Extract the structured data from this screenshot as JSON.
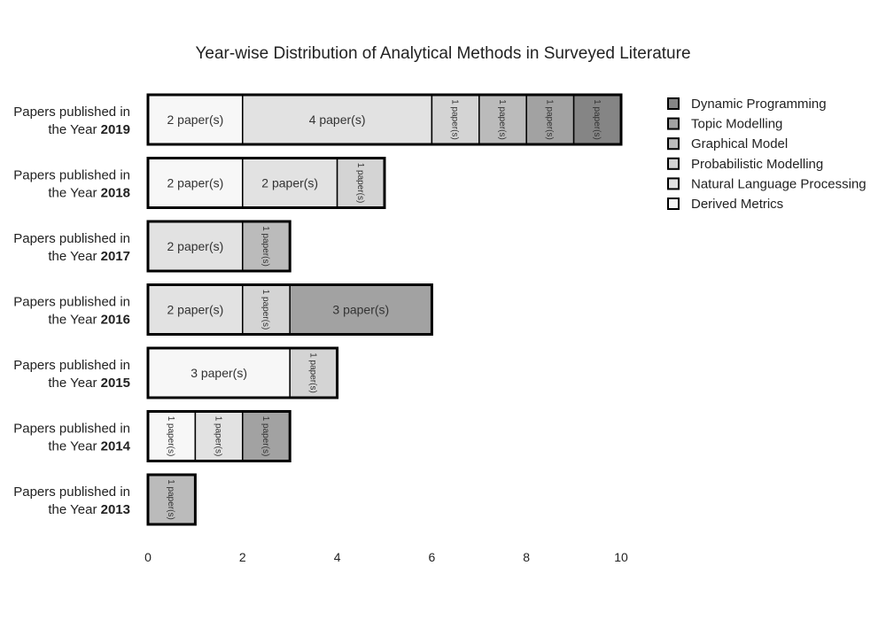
{
  "chart_data": {
    "type": "bar",
    "orientation": "horizontal",
    "stacked": true,
    "title": "Year-wise Distribution of Analytical Methods in Surveyed Literature",
    "xlabel": "",
    "ylabel": "",
    "xlim": [
      0,
      10
    ],
    "xticks": [
      "0",
      "2",
      "4",
      "6",
      "8",
      "10"
    ],
    "grid": false,
    "legend_position": "top-right",
    "categories": [
      {
        "prefix": "Papers published in",
        "line2": "the Year ",
        "year": "2013"
      },
      {
        "prefix": "Papers published in",
        "line2": "the Year ",
        "year": "2014"
      },
      {
        "prefix": "Papers published in",
        "line2": "the Year ",
        "year": "2015"
      },
      {
        "prefix": "Papers published in",
        "line2": "the Year ",
        "year": "2016"
      },
      {
        "prefix": "Papers published in",
        "line2": "the Year ",
        "year": "2017"
      },
      {
        "prefix": "Papers published in",
        "line2": "the Year ",
        "year": "2018"
      },
      {
        "prefix": "Papers published in",
        "line2": "the Year ",
        "year": "2019"
      }
    ],
    "segment_label_suffix": " paper(s)",
    "series": [
      {
        "name": "Derived Metrics",
        "color": "#f7f7f7",
        "values": [
          0,
          1,
          3,
          0,
          0,
          2,
          2
        ]
      },
      {
        "name": "Natural Language Processing",
        "color": "#e2e2e2",
        "values": [
          0,
          1,
          0,
          2,
          2,
          2,
          4
        ]
      },
      {
        "name": "Probabilistic Modelling",
        "color": "#d4d4d4",
        "values": [
          0,
          0,
          1,
          1,
          0,
          1,
          1
        ]
      },
      {
        "name": "Graphical Model",
        "color": "#bbbbbb",
        "values": [
          1,
          0,
          0,
          0,
          1,
          0,
          1
        ]
      },
      {
        "name": "Topic Modelling",
        "color": "#a2a2a2",
        "values": [
          0,
          1,
          0,
          3,
          0,
          0,
          1
        ]
      },
      {
        "name": "Dynamic Programming",
        "color": "#858585",
        "values": [
          0,
          0,
          0,
          0,
          0,
          0,
          1
        ]
      }
    ],
    "legend_order": [
      "Dynamic Programming",
      "Topic Modelling",
      "Graphical Model",
      "Probabilistic Modelling",
      "Natural Language Processing",
      "Derived Metrics"
    ]
  }
}
